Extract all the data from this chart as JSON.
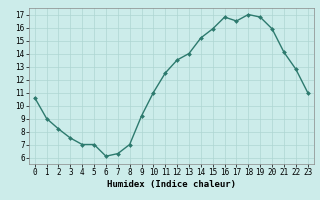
{
  "x": [
    0,
    1,
    2,
    3,
    4,
    5,
    6,
    7,
    8,
    9,
    10,
    11,
    12,
    13,
    14,
    15,
    16,
    17,
    18,
    19,
    20,
    21,
    22,
    23
  ],
  "y": [
    10.6,
    9.0,
    8.2,
    7.5,
    7.0,
    7.0,
    6.1,
    6.3,
    7.0,
    9.2,
    11.0,
    12.5,
    13.5,
    14.0,
    15.2,
    15.9,
    16.8,
    16.5,
    17.0,
    16.8,
    15.9,
    14.1,
    12.8,
    11.0
  ],
  "line_color": "#2d7a6e",
  "marker": "D",
  "marker_size": 2.0,
  "bg_color": "#ccecea",
  "grid_color": "#aed6d3",
  "xlabel": "Humidex (Indice chaleur)",
  "xlim": [
    -0.5,
    23.5
  ],
  "ylim": [
    5.5,
    17.5
  ],
  "yticks": [
    6,
    7,
    8,
    9,
    10,
    11,
    12,
    13,
    14,
    15,
    16,
    17
  ],
  "xticks": [
    0,
    1,
    2,
    3,
    4,
    5,
    6,
    7,
    8,
    9,
    10,
    11,
    12,
    13,
    14,
    15,
    16,
    17,
    18,
    19,
    20,
    21,
    22,
    23
  ],
  "tick_fontsize": 5.5,
  "xlabel_fontsize": 6.5,
  "line_width": 1.0
}
